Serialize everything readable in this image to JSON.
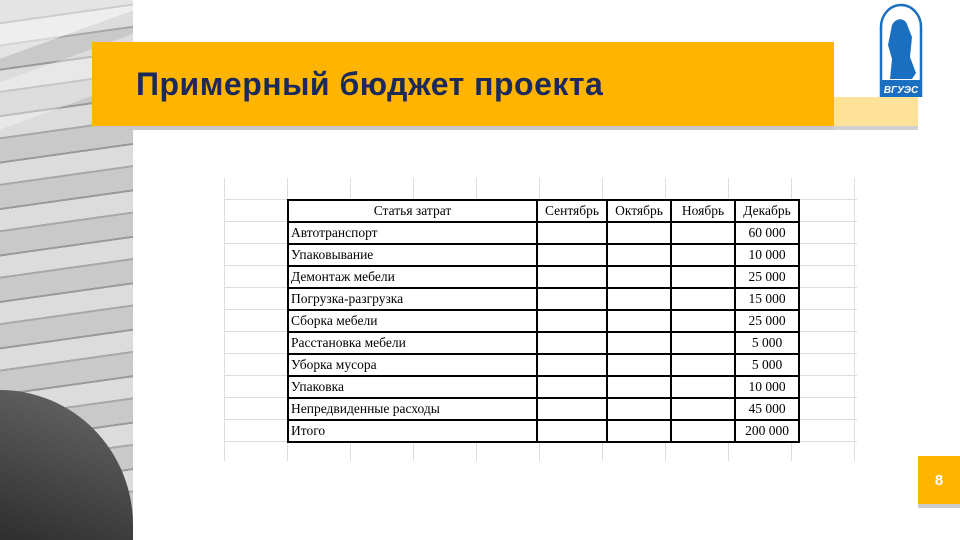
{
  "slide": {
    "title": "Примерный бюджет проекта",
    "page_number": "8",
    "logo_text": "ВГУЭС",
    "accent_color": "#FFB400",
    "title_color": "#1b2a5a"
  },
  "table": {
    "headers": [
      "Статья затрат",
      "Сентябрь",
      "Октябрь",
      "Ноябрь",
      "Декабрь"
    ],
    "rows": [
      {
        "item": "Автотранспорт",
        "dec": "60 000"
      },
      {
        "item": "Упаковывание",
        "dec": "10 000"
      },
      {
        "item": "Демонтаж мебели",
        "dec": "25 000"
      },
      {
        "item": "Погрузка-разгрузка",
        "dec": "15 000"
      },
      {
        "item": "Сборка мебели",
        "dec": "25 000"
      },
      {
        "item": "Расстановка мебели",
        "dec": "5 000"
      },
      {
        "item": "Уборка мусора",
        "dec": "5 000"
      },
      {
        "item": "Упаковка",
        "dec": "10 000"
      },
      {
        "item": "Непредвиденные расходы",
        "dec": "45 000"
      },
      {
        "item": "Итого",
        "dec": "200 000"
      }
    ]
  }
}
